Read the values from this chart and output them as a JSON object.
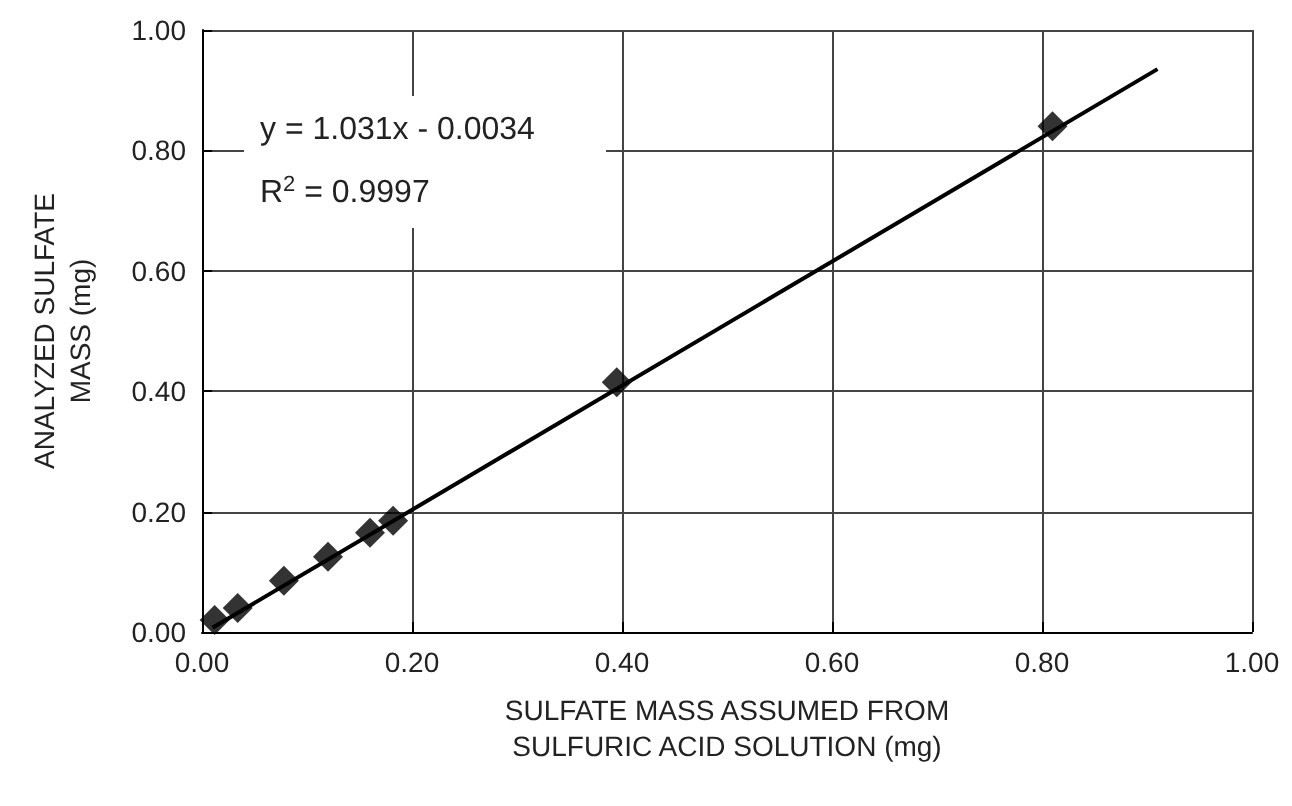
{
  "chart_data": {
    "type": "scatter",
    "xlabel": "SULFATE MASS ASSUMED FROM\nSULFURIC ACID SOLUTION (mg)",
    "ylabel": "ANALYZED SULFATE\nMASS (mg)",
    "annotations": [
      "y = 1.031x - 0.0034",
      "R$^{2}$ = 0.9997"
    ],
    "series": [
      {
        "color": "#000000",
        "marker": "diamond",
        "x": [
          0.012,
          0.034,
          0.078,
          0.12,
          0.16,
          0.182,
          0.395,
          0.81
        ],
        "values": [
          0.02,
          0.04,
          0.085,
          0.125,
          0.165,
          0.185,
          0.415,
          0.84
        ]
      },
      {
        "type": "line",
        "color": "#000000",
        "marker": "none",
        "x": [
          0.01,
          0.91
        ],
        "values": [
          0.007,
          0.935
        ]
      }
    ],
    "xlim": [
      0,
      1
    ],
    "xticks": [
      {
        "value": 0,
        "label": "0.00"
      },
      {
        "value": 0.2,
        "label": "0.20"
      },
      {
        "value": 0.4,
        "label": "0.40"
      },
      {
        "value": 0.6,
        "label": "0.60"
      },
      {
        "value": 0.8,
        "label": "0.80"
      },
      {
        "value": 1,
        "label": "1.00"
      }
    ],
    "ylim": [
      0,
      1
    ],
    "yticks": [
      {
        "value": 0,
        "label": "0.00"
      },
      {
        "value": 0.2,
        "label": "0.20"
      },
      {
        "value": 0.4,
        "label": "0.40"
      },
      {
        "value": 0.6,
        "label": "0.60"
      },
      {
        "value": 0.8,
        "label": "0.80"
      },
      {
        "value": 1,
        "label": "1.00"
      }
    ],
    "grid": true
  }
}
